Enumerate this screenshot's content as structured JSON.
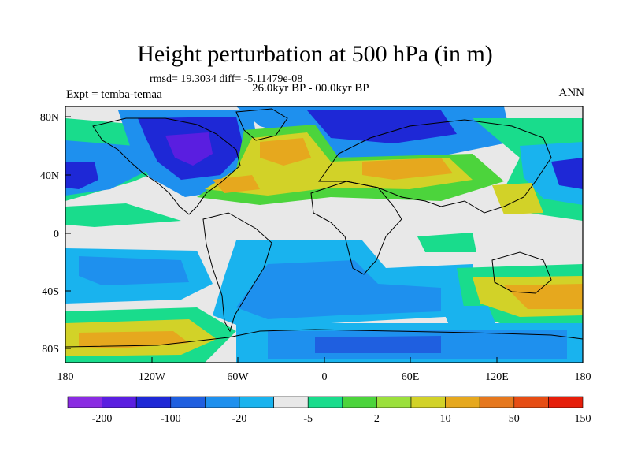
{
  "title": "Height perturbation at 500 hPa (in m)",
  "stats": "rmsd= 19.3034 diff= -5.11479e-08",
  "experiment": "Expt = temba-temaa",
  "period": "26.0kyr BP - 00.0kyr BP",
  "season": "ANN",
  "lat_ticks": [
    "80N",
    "40N",
    "0",
    "40S",
    "80S"
  ],
  "lon_ticks": [
    "180",
    "120W",
    "60W",
    "0",
    "60E",
    "120E",
    "180"
  ],
  "colorbar": {
    "labels": [
      "-200",
      "-100",
      "-20",
      "-5",
      "2",
      "10",
      "50",
      "150"
    ],
    "colors": [
      "#8a2be2",
      "#5a1ee0",
      "#1e28d6",
      "#1f5fe0",
      "#1e90ee",
      "#19b3ee",
      "#e8e8e8",
      "#19dc8c",
      "#4cd43c",
      "#9be03c",
      "#d2d228",
      "#e6a81e",
      "#e6781e",
      "#e64d14",
      "#e61e0a"
    ]
  },
  "colors": {
    "blue_deep": "#1e28d6",
    "blue_mid": "#1f5fe0",
    "blue_light": "#1e90ee",
    "cyan": "#19b3ee",
    "neutral": "#e8e8e8",
    "green": "#19dc8c",
    "lime": "#4cd43c",
    "yellow": "#d2d228",
    "orange": "#e6a81e",
    "dark_orange": "#e6781e"
  }
}
